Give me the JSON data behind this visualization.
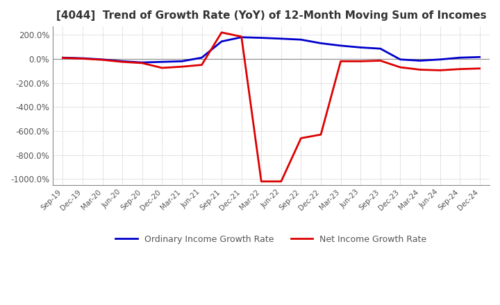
{
  "title": "[4044]  Trend of Growth Rate (YoY) of 12-Month Moving Sum of Incomes",
  "title_fontsize": 11,
  "legend_entries": [
    "Ordinary Income Growth Rate",
    "Net Income Growth Rate"
  ],
  "line_colors": [
    "#0000cc",
    "#dd0000"
  ],
  "ylim": [
    -1050,
    270
  ],
  "yticks": [
    200,
    0,
    -200,
    -400,
    -600,
    -800,
    -1000
  ],
  "ytick_labels": [
    "200.0%",
    "0.0%",
    "-200.0%",
    "-400.0%",
    "-600.0%",
    "-800.0%",
    "-1000.0%"
  ],
  "x_labels": [
    "Sep-19",
    "Dec-19",
    "Mar-20",
    "Jun-20",
    "Sep-20",
    "Dec-20",
    "Mar-21",
    "Jun-21",
    "Sep-21",
    "Dec-21",
    "Mar-22",
    "Jun-22",
    "Sep-22",
    "Dec-22",
    "Mar-23",
    "Jun-23",
    "Sep-23",
    "Dec-23",
    "Mar-24",
    "Jun-24",
    "Sep-24",
    "Dec-24"
  ],
  "ordinary_income": [
    10,
    5,
    -5,
    -20,
    -30,
    -25,
    -20,
    10,
    145,
    180,
    175,
    168,
    160,
    130,
    110,
    95,
    85,
    -5,
    -15,
    -5,
    10,
    15
  ],
  "net_income": [
    8,
    2,
    -8,
    -25,
    -35,
    -75,
    -65,
    -50,
    220,
    185,
    -1020,
    -1020,
    -660,
    -630,
    -20,
    -20,
    -15,
    -70,
    -90,
    -95,
    -85,
    -80
  ],
  "background_color": "#ffffff",
  "grid_color": "#aaaaaa",
  "text_color": "#555555"
}
